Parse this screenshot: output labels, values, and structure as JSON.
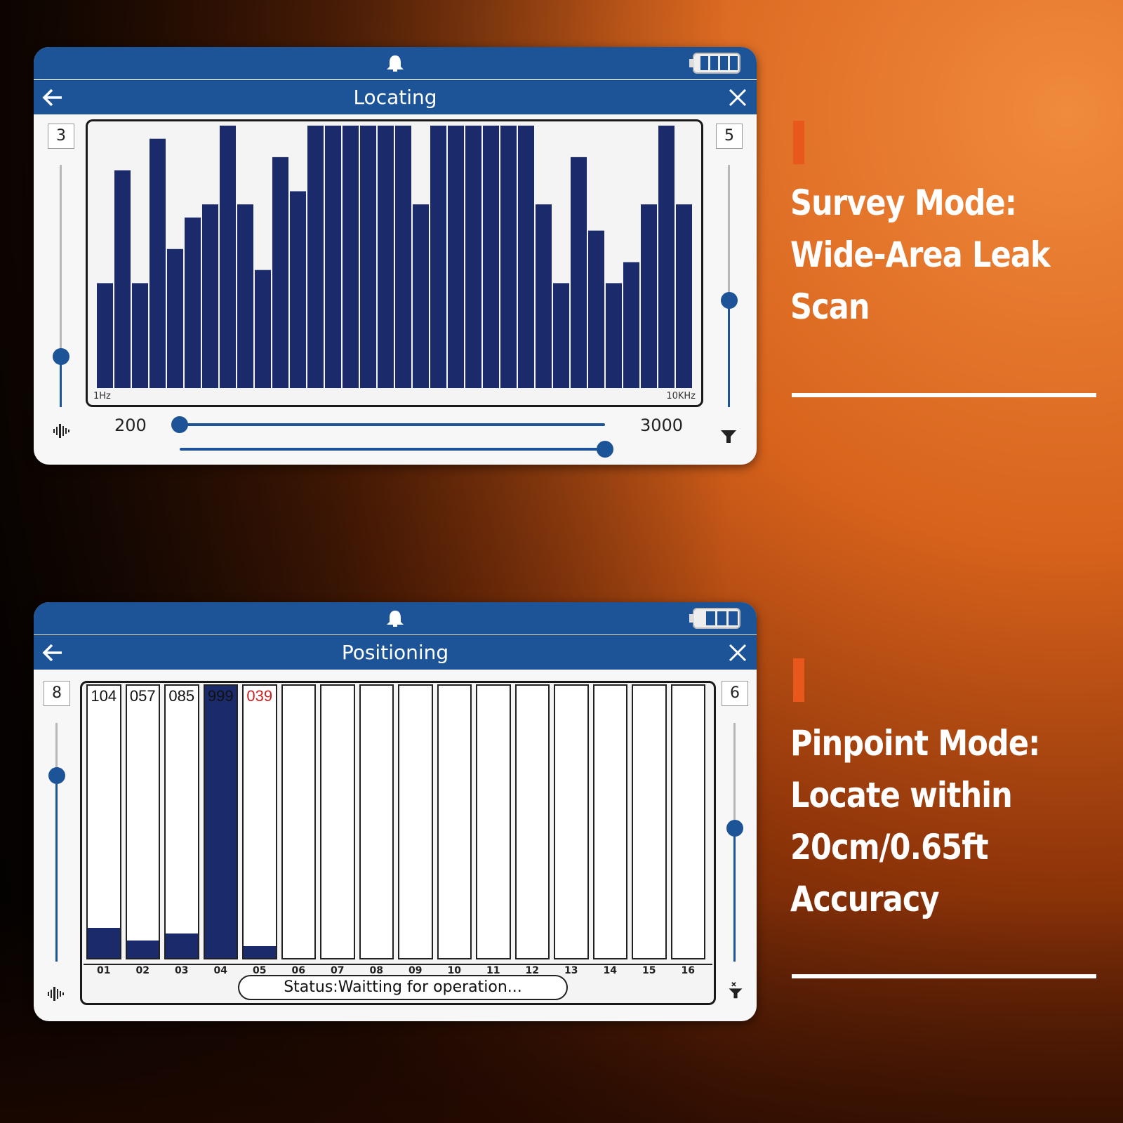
{
  "locating": {
    "title": "Locating",
    "left_level": "3",
    "right_level": "5",
    "left_slider_fraction": 0.21,
    "right_slider_fraction": 0.44,
    "freq_min_label": "1Hz",
    "freq_max_label": "10KHz",
    "low_value": "200",
    "high_value": "3000",
    "spectrum_levels": [
      0.4,
      0.83,
      0.4,
      0.95,
      0.53,
      0.65,
      0.7,
      1.0,
      0.7,
      0.45,
      0.88,
      0.75,
      1.0,
      1.0,
      1.0,
      1.0,
      1.0,
      1.0,
      0.7,
      1.0,
      1.0,
      1.0,
      1.0,
      1.0,
      1.0,
      0.7,
      0.4,
      0.88,
      0.6,
      0.4,
      0.48,
      0.7,
      1.0,
      0.7
    ],
    "bar_color": "#1b2a6b"
  },
  "positioning": {
    "title": "Positioning",
    "left_level": "8",
    "right_level": "6",
    "left_slider_fraction": 0.78,
    "right_slider_fraction": 0.56,
    "status_text": "Status:Waitting for operation...",
    "channels": [
      {
        "id": "01",
        "value": "104",
        "fill": 0.11,
        "color": "#111111",
        "selected": false
      },
      {
        "id": "02",
        "value": "057",
        "fill": 0.065,
        "color": "#111111",
        "selected": false
      },
      {
        "id": "03",
        "value": "085",
        "fill": 0.09,
        "color": "#111111",
        "selected": false
      },
      {
        "id": "04",
        "value": "999",
        "fill": 1.0,
        "color": "#111111",
        "selected": true
      },
      {
        "id": "05",
        "value": "039",
        "fill": 0.045,
        "color": "#cc1f1f",
        "selected": false
      },
      {
        "id": "06",
        "value": "",
        "fill": 0,
        "color": "#111111",
        "selected": false
      },
      {
        "id": "07",
        "value": "",
        "fill": 0,
        "color": "#111111",
        "selected": false
      },
      {
        "id": "08",
        "value": "",
        "fill": 0,
        "color": "#111111",
        "selected": false
      },
      {
        "id": "09",
        "value": "",
        "fill": 0,
        "color": "#111111",
        "selected": false
      },
      {
        "id": "10",
        "value": "",
        "fill": 0,
        "color": "#111111",
        "selected": false
      },
      {
        "id": "11",
        "value": "",
        "fill": 0,
        "color": "#111111",
        "selected": false
      },
      {
        "id": "12",
        "value": "",
        "fill": 0,
        "color": "#111111",
        "selected": false
      },
      {
        "id": "13",
        "value": "",
        "fill": 0,
        "color": "#111111",
        "selected": false
      },
      {
        "id": "14",
        "value": "",
        "fill": 0,
        "color": "#111111",
        "selected": false
      },
      {
        "id": "15",
        "value": "",
        "fill": 0,
        "color": "#111111",
        "selected": false
      },
      {
        "id": "16",
        "value": "",
        "fill": 0,
        "color": "#111111",
        "selected": false
      }
    ]
  },
  "captions": {
    "survey_lines": [
      "Survey Mode:",
      "Wide-Area Leak",
      "Scan"
    ],
    "pinpoint_lines": [
      "Pinpoint Mode:",
      "Locate within",
      "20cm/0.65ft",
      "Accuracy"
    ]
  },
  "icons": {
    "bell": "bell-icon",
    "battery": "battery-icon",
    "back": "back-arrow-icon",
    "close": "close-icon",
    "sound": "sound-wave-icon",
    "filter": "filter-icon"
  },
  "colors": {
    "header_blue": "#1d5497",
    "bar_navy": "#1b2a6b",
    "accent_orange": "#e8571c"
  }
}
